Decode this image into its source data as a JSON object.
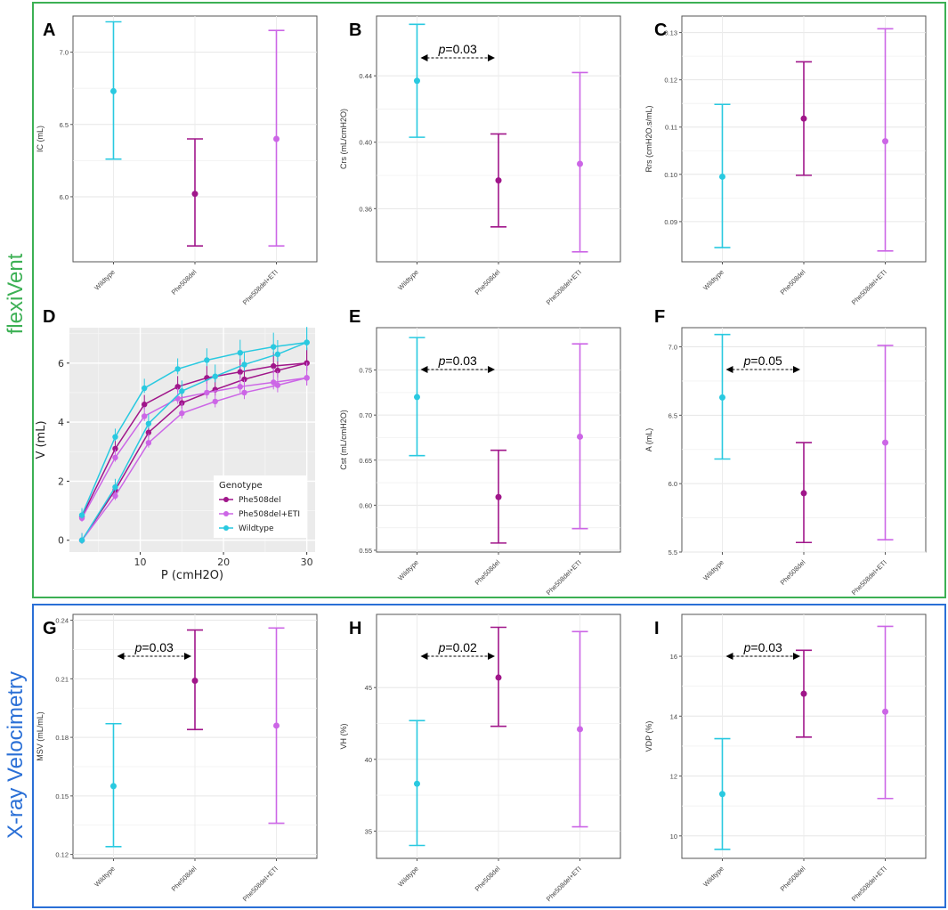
{
  "sections": {
    "flexivent": {
      "label": "flexiVent",
      "color": "#3cb054"
    },
    "xray": {
      "label": "X-ray Velocimetry",
      "color": "#2a6fd6"
    }
  },
  "colors": {
    "Wildtype": "#29c9e0",
    "Phe508del": "#a0168a",
    "Phe508del+ETI": "#cc66e6"
  },
  "chart_data": [
    {
      "id": "A",
      "type": "errorbar",
      "ylabel": "IC (mL)",
      "ylim": [
        5.55,
        7.25
      ],
      "yticks": [
        6.0,
        6.5,
        7.0
      ],
      "categories": [
        "Wildtype",
        "Phe508del",
        "Phe508del+ETI"
      ],
      "mean": [
        6.73,
        6.02,
        6.4
      ],
      "lower": [
        6.26,
        5.66,
        5.66
      ],
      "upper": [
        7.21,
        6.4,
        7.15
      ],
      "pvalue": null
    },
    {
      "id": "B",
      "type": "errorbar",
      "ylabel": "Crs (mL/cmH2O)",
      "ylim": [
        0.328,
        0.476
      ],
      "yticks": [
        0.36,
        0.4,
        0.44
      ],
      "categories": [
        "Wildtype",
        "Phe508del",
        "Phe508del+ETI"
      ],
      "mean": [
        0.437,
        0.377,
        0.387
      ],
      "lower": [
        0.403,
        0.349,
        0.334
      ],
      "upper": [
        0.471,
        0.405,
        0.442
      ],
      "pvalue": {
        "text": "p=0.03",
        "from": 0,
        "to": 1
      }
    },
    {
      "id": "C",
      "type": "errorbar",
      "ylabel": "Rrs (cmH2O.s/mL)",
      "ylim": [
        0.0815,
        0.1335
      ],
      "yticks": [
        0.09,
        0.1,
        0.11,
        0.12,
        0.13
      ],
      "categories": [
        "Wildtype",
        "Phe508del",
        "Phe508del+ETI"
      ],
      "mean": [
        0.0995,
        0.1118,
        0.107
      ],
      "lower": [
        0.0845,
        0.0998,
        0.0838
      ],
      "upper": [
        0.1148,
        0.1238,
        0.1308
      ],
      "pvalue": null
    },
    {
      "id": "D",
      "type": "line",
      "title": "",
      "xlabel": "P (cmH2O)",
      "ylabel": "V (mL)",
      "xlim": [
        1.5,
        31
      ],
      "ylim": [
        -0.4,
        7.2
      ],
      "xticks": [
        10,
        20,
        30
      ],
      "yticks": [
        0,
        2,
        4,
        6
      ],
      "legend_title": "Genotype",
      "series": [
        {
          "name": "Phe508del",
          "upper_x": [
            3,
            7,
            10.5,
            14.5,
            18,
            22,
            26,
            30
          ],
          "upper_y": [
            0.8,
            3.1,
            4.6,
            5.2,
            5.5,
            5.7,
            5.9,
            6.0
          ],
          "lower_x": [
            3,
            7,
            11,
            15,
            19,
            22.5,
            26.5,
            30
          ],
          "lower_y": [
            0.0,
            1.7,
            3.65,
            4.65,
            5.1,
            5.45,
            5.75,
            6.0
          ]
        },
        {
          "name": "Phe508del+ETI",
          "upper_x": [
            3,
            7,
            10.5,
            14.5,
            18,
            22,
            26,
            30
          ],
          "upper_y": [
            0.75,
            2.8,
            4.2,
            4.8,
            5.0,
            5.2,
            5.35,
            5.5
          ],
          "lower_x": [
            3,
            7,
            11,
            15,
            19,
            22.5,
            26.5,
            30
          ],
          "lower_y": [
            0.0,
            1.5,
            3.3,
            4.3,
            4.7,
            5.0,
            5.25,
            5.5
          ]
        },
        {
          "name": "Wildtype",
          "upper_x": [
            3,
            7,
            10.5,
            14.5,
            18,
            22,
            26,
            30
          ],
          "upper_y": [
            0.85,
            3.5,
            5.15,
            5.8,
            6.1,
            6.35,
            6.55,
            6.7
          ],
          "lower_x": [
            3,
            7,
            11,
            15,
            19,
            22.5,
            26.5,
            30
          ],
          "lower_y": [
            0.0,
            1.8,
            3.95,
            5.05,
            5.55,
            5.95,
            6.3,
            6.7
          ]
        }
      ]
    },
    {
      "id": "E",
      "type": "errorbar",
      "ylabel": "Cst (mL/cmH2O)",
      "ylim": [
        0.548,
        0.797
      ],
      "yticks": [
        0.55,
        0.6,
        0.65,
        0.7,
        0.75
      ],
      "categories": [
        "Wildtype",
        "Phe508del",
        "Phe508del+ETI"
      ],
      "mean": [
        0.72,
        0.609,
        0.676
      ],
      "lower": [
        0.655,
        0.558,
        0.574
      ],
      "upper": [
        0.786,
        0.661,
        0.779
      ],
      "pvalue": {
        "text": "p=0.03",
        "from": 0,
        "to": 1
      }
    },
    {
      "id": "F",
      "type": "errorbar",
      "ylabel": "A (mL)",
      "ylim": [
        5.5,
        7.14
      ],
      "yticks": [
        5.5,
        6.0,
        6.5,
        7.0
      ],
      "categories": [
        "Wildtype",
        "Phe508del",
        "Phe508del+ETI"
      ],
      "mean": [
        6.63,
        5.93,
        6.3
      ],
      "lower": [
        6.18,
        5.57,
        5.59
      ],
      "upper": [
        7.09,
        6.3,
        7.01
      ],
      "pvalue": {
        "text": "p=0.05",
        "from": 0,
        "to": 1
      }
    },
    {
      "id": "G",
      "type": "errorbar",
      "ylabel": "MSV (mL/mL)",
      "ylim": [
        0.118,
        0.243
      ],
      "yticks": [
        0.12,
        0.15,
        0.18,
        0.21,
        0.24
      ],
      "categories": [
        "Wildtype",
        "Phe508del",
        "Phe508del+ETI"
      ],
      "mean": [
        0.155,
        0.209,
        0.186
      ],
      "lower": [
        0.124,
        0.184,
        0.136
      ],
      "upper": [
        0.187,
        0.235,
        0.236
      ],
      "pvalue": {
        "text": "p=0.03",
        "from": 0,
        "to": 1
      }
    },
    {
      "id": "H",
      "type": "errorbar",
      "ylabel": "VH (%)",
      "ylim": [
        33.1,
        50.1
      ],
      "yticks": [
        35,
        40,
        45
      ],
      "categories": [
        "Wildtype",
        "Phe508del",
        "Phe508del+ETI"
      ],
      "mean": [
        38.3,
        45.7,
        42.1
      ],
      "lower": [
        34.0,
        42.3,
        35.3
      ],
      "upper": [
        42.7,
        49.2,
        48.9
      ],
      "pvalue": {
        "text": "p=0.02",
        "from": 0,
        "to": 1
      }
    },
    {
      "id": "I",
      "type": "errorbar",
      "ylabel": "VDP (%)",
      "ylim": [
        9.25,
        17.4
      ],
      "yticks": [
        10,
        12,
        14,
        16
      ],
      "categories": [
        "Wildtype",
        "Phe508del",
        "Phe508del+ETI"
      ],
      "mean": [
        11.4,
        14.75,
        14.15
      ],
      "lower": [
        9.55,
        13.3,
        11.25
      ],
      "upper": [
        13.25,
        16.2,
        17.0
      ],
      "pvalue": {
        "text": "p=0.03",
        "from": 0,
        "to": 1
      }
    }
  ]
}
